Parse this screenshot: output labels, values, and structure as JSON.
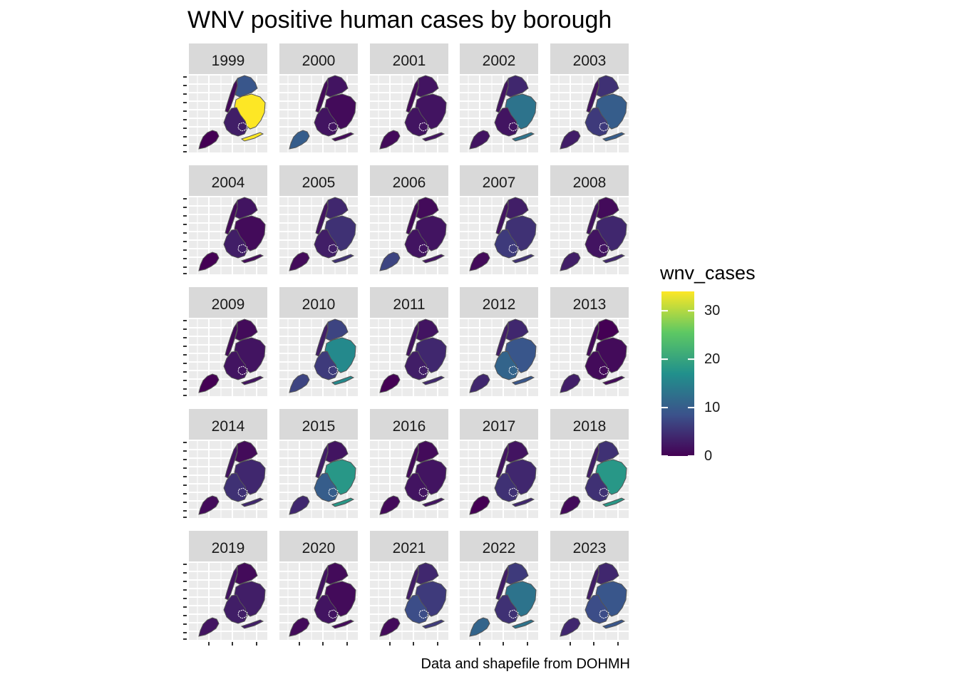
{
  "title": "WNV positive human cases by borough",
  "caption": "Data and shapefile from DOHMH",
  "legend": {
    "title": "wnv_cases",
    "breaks": [
      0,
      10,
      20,
      30
    ],
    "break_labels": [
      "0",
      "10",
      "20",
      "30"
    ],
    "limits": [
      0,
      34
    ],
    "palette": "viridis",
    "colors": [
      "#440154",
      "#3b528b",
      "#21908c",
      "#5dc863",
      "#fde725"
    ]
  },
  "colors": {
    "panel_background": "#ebebeb",
    "grid": "#ffffff",
    "strip_background": "#d9d9d9",
    "borough_border": "#555555"
  },
  "chart_data": {
    "type": "map",
    "facet_by": "year",
    "boroughs": [
      "Bronx",
      "Brooklyn",
      "Manhattan",
      "Queens",
      "Staten Island"
    ],
    "years": [
      "1999",
      "2000",
      "2001",
      "2002",
      "2003",
      "2004",
      "2005",
      "2006",
      "2007",
      "2008",
      "2009",
      "2010",
      "2011",
      "2012",
      "2013",
      "2014",
      "2015",
      "2016",
      "2017",
      "2018",
      "2019",
      "2020",
      "2021",
      "2022",
      "2023"
    ],
    "wnv_cases": {
      "1999": {
        "Bronx": 9,
        "Brooklyn": 3,
        "Manhattan": 1,
        "Queens": 34,
        "Staten Island": 0
      },
      "2000": {
        "Bronx": 2,
        "Brooklyn": 2,
        "Manhattan": 1,
        "Queens": 1,
        "Staten Island": 10
      },
      "2001": {
        "Bronx": 2,
        "Brooklyn": 2,
        "Manhattan": 1,
        "Queens": 2,
        "Staten Island": 1
      },
      "2002": {
        "Bronx": 4,
        "Brooklyn": 2,
        "Manhattan": 2,
        "Queens": 13,
        "Staten Island": 2
      },
      "2003": {
        "Bronx": 5,
        "Brooklyn": 6,
        "Manhattan": 2,
        "Queens": 10,
        "Staten Island": 3
      },
      "2004": {
        "Bronx": 2,
        "Brooklyn": 3,
        "Manhattan": 1,
        "Queens": 1,
        "Staten Island": 0
      },
      "2005": {
        "Bronx": 4,
        "Brooklyn": 3,
        "Manhattan": 2,
        "Queens": 5,
        "Staten Island": 1
      },
      "2006": {
        "Bronx": 1,
        "Brooklyn": 2,
        "Manhattan": 1,
        "Queens": 2,
        "Staten Island": 7
      },
      "2007": {
        "Bronx": 3,
        "Brooklyn": 6,
        "Manhattan": 2,
        "Queens": 5,
        "Staten Island": 1
      },
      "2008": {
        "Bronx": 1,
        "Brooklyn": 2,
        "Manhattan": 2,
        "Queens": 4,
        "Staten Island": 3
      },
      "2009": {
        "Bronx": 1,
        "Brooklyn": 2,
        "Manhattan": 1,
        "Queens": 2,
        "Staten Island": 0
      },
      "2010": {
        "Bronx": 7,
        "Brooklyn": 6,
        "Manhattan": 3,
        "Queens": 16,
        "Staten Island": 7
      },
      "2011": {
        "Bronx": 2,
        "Brooklyn": 3,
        "Manhattan": 2,
        "Queens": 4,
        "Staten Island": 0
      },
      "2012": {
        "Bronx": 4,
        "Brooklyn": 11,
        "Manhattan": 3,
        "Queens": 9,
        "Staten Island": 4
      },
      "2013": {
        "Bronx": 0,
        "Brooklyn": 1,
        "Manhattan": 1,
        "Queens": 1,
        "Staten Island": 3
      },
      "2014": {
        "Bronx": 1,
        "Brooklyn": 5,
        "Manhattan": 2,
        "Queens": 4,
        "Staten Island": 1
      },
      "2015": {
        "Bronx": 2,
        "Brooklyn": 10,
        "Manhattan": 3,
        "Queens": 18,
        "Staten Island": 4
      },
      "2016": {
        "Bronx": 1,
        "Brooklyn": 2,
        "Manhattan": 1,
        "Queens": 2,
        "Staten Island": 1
      },
      "2017": {
        "Bronx": 2,
        "Brooklyn": 5,
        "Manhattan": 2,
        "Queens": 4,
        "Staten Island": 0
      },
      "2018": {
        "Bronx": 5,
        "Brooklyn": 5,
        "Manhattan": 3,
        "Queens": 18,
        "Staten Island": 1
      },
      "2019": {
        "Bronx": 1,
        "Brooklyn": 3,
        "Manhattan": 2,
        "Queens": 3,
        "Staten Island": 2
      },
      "2020": {
        "Bronx": 1,
        "Brooklyn": 2,
        "Manhattan": 2,
        "Queens": 1,
        "Staten Island": 1
      },
      "2021": {
        "Bronx": 4,
        "Brooklyn": 8,
        "Manhattan": 3,
        "Queens": 6,
        "Staten Island": 1
      },
      "2022": {
        "Bronx": 6,
        "Brooklyn": 5,
        "Manhattan": 3,
        "Queens": 13,
        "Staten Island": 11
      },
      "2023": {
        "Bronx": 4,
        "Brooklyn": 8,
        "Manhattan": 3,
        "Queens": 9,
        "Staten Island": 4
      }
    }
  }
}
